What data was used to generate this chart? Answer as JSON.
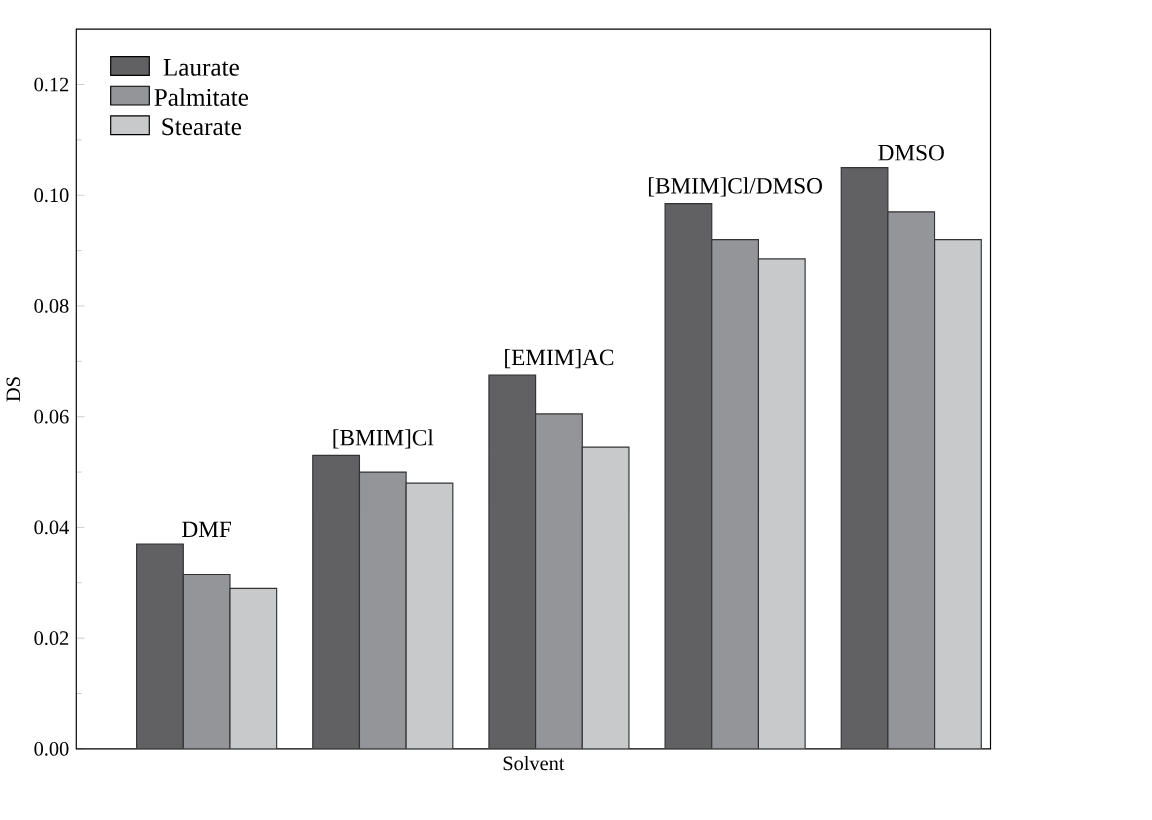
{
  "chart_data": {
    "type": "bar",
    "xlabel": "Solvent",
    "ylabel": "DS",
    "categories": [
      "DMF",
      "[BMIM]Cl",
      "[EMIM]AC",
      "[BMIM]Cl/DMSO",
      "DMSO"
    ],
    "series": [
      {
        "name": "Laurate",
        "color": "#616163",
        "values": [
          0.037,
          0.053,
          0.0675,
          0.0985,
          0.105
        ]
      },
      {
        "name": "Palmitate",
        "color": "#949598",
        "values": [
          0.0315,
          0.05,
          0.0605,
          0.092,
          0.097
        ]
      },
      {
        "name": "Stearate",
        "color": "#c8c9cb",
        "values": [
          0.029,
          0.048,
          0.0545,
          0.0885,
          0.092
        ]
      }
    ],
    "ylim": [
      0,
      0.13
    ],
    "yticks": [
      {
        "value": 0,
        "label": "0.00"
      },
      {
        "value": 0.02,
        "label": "0.02"
      },
      {
        "value": 0.04,
        "label": "0.04"
      },
      {
        "value": 0.06,
        "label": "0.06"
      },
      {
        "value": 0.08,
        "label": "0.08"
      },
      {
        "value": 0.1,
        "label": "0.10"
      },
      {
        "value": 0.12,
        "label": "0.12"
      }
    ],
    "grid": false,
    "legend": "top left"
  }
}
